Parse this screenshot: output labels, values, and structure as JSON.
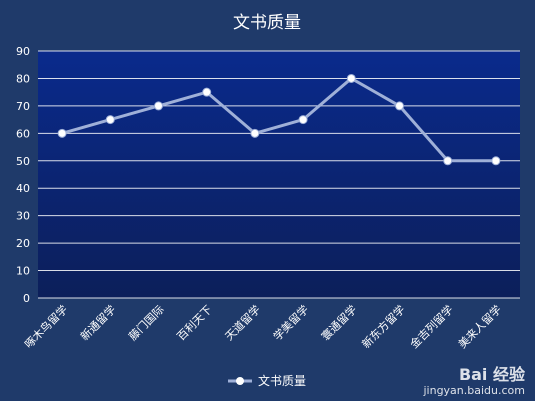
{
  "chart_data": {
    "type": "line",
    "title": "文书质量",
    "xlabel": "",
    "ylabel": "",
    "categories": [
      "啄木鸟留学",
      "新通留学",
      "藤门国际",
      "百利天下",
      "天道留学",
      "学美留学",
      "寰通留学",
      "新东方留学",
      "金吉列留学",
      "美来人留学"
    ],
    "series": [
      {
        "name": "文书质量",
        "values": [
          60,
          65,
          70,
          75,
          60,
          65,
          80,
          70,
          50,
          50
        ]
      }
    ],
    "ylim": [
      0,
      90
    ],
    "yticks": [
      0,
      10,
      20,
      30,
      40,
      50,
      60,
      70,
      80,
      90
    ],
    "grid": true,
    "legend_position": "bottom",
    "colors": {
      "background": "#1f3a6a",
      "plot_top": "#0a2a8c",
      "plot_bottom": "#0c1f5a",
      "line": "#9fb0d8",
      "marker": "#ffffff",
      "text": "#ffffff",
      "grid": "#ffffff"
    }
  },
  "watermark": {
    "logo": "Bai 经验",
    "url": "jingyan.baidu.com"
  }
}
